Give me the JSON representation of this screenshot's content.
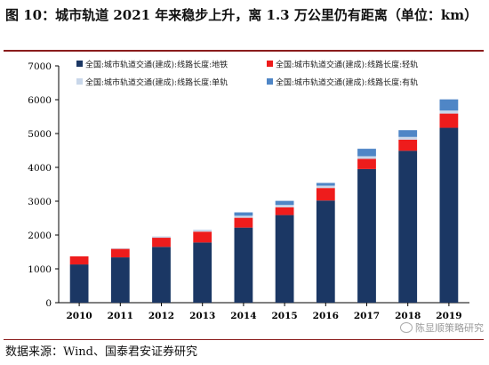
{
  "figure": {
    "title": "图 10：城市轨道 2021 年来稳步上升，离 1.3 万公里仍有距离（单位：km）",
    "source": "数据来源：Wind、国泰君安证券研究",
    "watermark": "陈显顺策略研究",
    "watermark_icon": "wechat-icon"
  },
  "chart_data": {
    "type": "bar",
    "stacked": true,
    "categories": [
      "2010",
      "2011",
      "2012",
      "2013",
      "2014",
      "2015",
      "2016",
      "2017",
      "2018",
      "2019"
    ],
    "ylim": [
      0,
      7000
    ],
    "yticks": [
      0,
      1000,
      2000,
      3000,
      4000,
      5000,
      6000,
      7000
    ],
    "grid": false,
    "legend_position": "top-left",
    "series": [
      {
        "name": "全国:城市轨道交通(建成):线路长度:地铁",
        "color": "#1b3764",
        "values": [
          1130,
          1340,
          1650,
          1780,
          2220,
          2590,
          3020,
          3950,
          4490,
          5170
        ]
      },
      {
        "name": "全国:城市轨道交通(建成):线路长度:轻轨",
        "color": "#ee1c1c",
        "values": [
          240,
          250,
          270,
          320,
          290,
          230,
          370,
          300,
          330,
          420
        ]
      },
      {
        "name": "全国:城市轨道交通(建成):线路长度:单轨",
        "color": "#c9d7ea",
        "values": [
          0,
          20,
          40,
          60,
          60,
          70,
          70,
          80,
          80,
          90
        ]
      },
      {
        "name": "全国:城市轨道交通(建成):线路长度:有轨",
        "color": "#4f86c6",
        "values": [
          0,
          0,
          0,
          0,
          100,
          120,
          80,
          220,
          200,
          330
        ]
      }
    ]
  }
}
